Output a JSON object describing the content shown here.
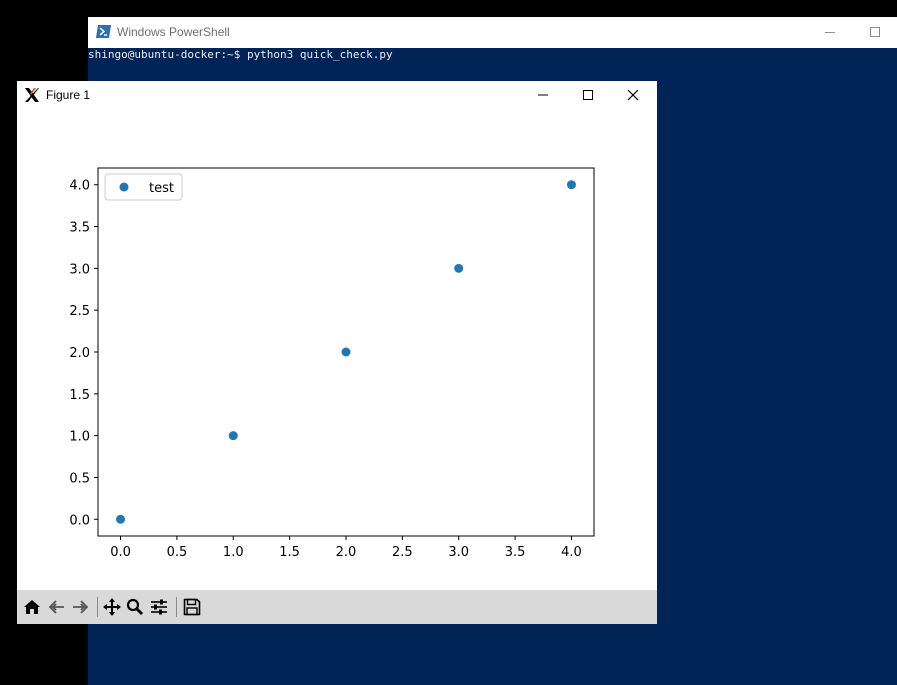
{
  "powershell": {
    "title": "Windows PowerShell",
    "prompt_line": "shingo@ubuntu-docker:~$ python3 quick_check.py",
    "background_color": "#012456"
  },
  "figure_window": {
    "title": "Figure 1",
    "toolbar": {
      "buttons": [
        "home-icon",
        "back-icon",
        "forward-icon",
        "pan-icon",
        "zoom-icon",
        "configure-subplots-icon",
        "save-icon"
      ]
    }
  },
  "chart_data": {
    "type": "scatter",
    "title": "",
    "xlabel": "",
    "ylabel": "",
    "x": [
      0.0,
      1.0,
      2.0,
      3.0,
      4.0
    ],
    "series": [
      {
        "name": "test",
        "x": [
          0.0,
          1.0,
          2.0,
          3.0,
          4.0
        ],
        "y": [
          0.0,
          1.0,
          2.0,
          3.0,
          4.0
        ],
        "color": "#1f77b4"
      }
    ],
    "xlim": [
      -0.2,
      4.2
    ],
    "ylim": [
      -0.2,
      4.2
    ],
    "xticks": [
      "0.0",
      "0.5",
      "1.0",
      "1.5",
      "2.0",
      "2.5",
      "3.0",
      "3.5",
      "4.0"
    ],
    "yticks": [
      "0.0",
      "0.5",
      "1.0",
      "1.5",
      "2.0",
      "2.5",
      "3.0",
      "3.5",
      "4.0"
    ],
    "grid": false,
    "legend_placement": "top-left"
  }
}
